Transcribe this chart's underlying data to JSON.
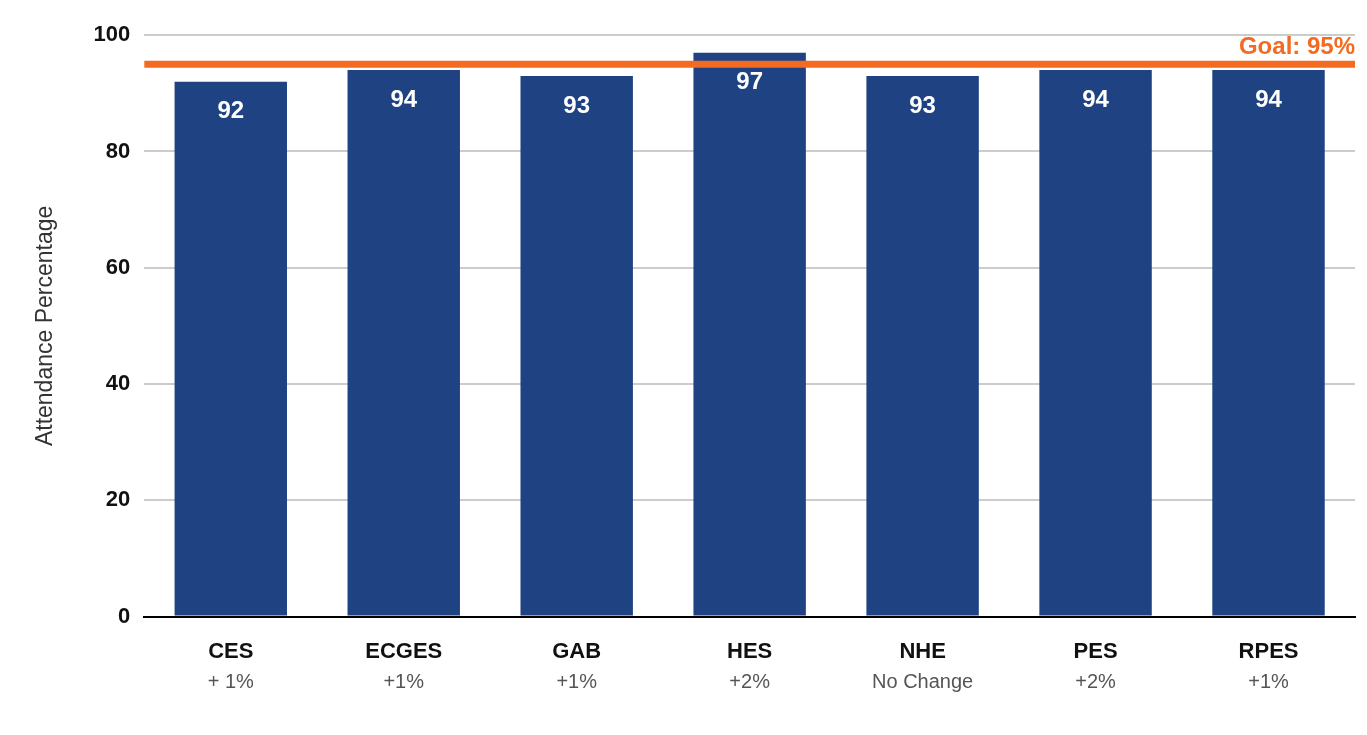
{
  "chart_data": {
    "type": "bar",
    "ylabel": "Attendance Percentage",
    "categories": [
      "CES",
      "ECGES",
      "GAB",
      "HES",
      "NHE",
      "PES",
      "RPES"
    ],
    "values": [
      92,
      94,
      93,
      97,
      93,
      94,
      94
    ],
    "color": "#1f4283",
    "ylim": [
      0,
      100
    ],
    "yticks": [
      0,
      20,
      40,
      60,
      80,
      100
    ],
    "grid": "y",
    "legend": false,
    "data_labels": true,
    "ref_lines": [
      {
        "axis": "y",
        "value": 95,
        "label": "Goal: 95%",
        "color": "#f26b21"
      }
    ],
    "annotations": [
      "+ 1%",
      "+1%",
      "+1%",
      "+2%",
      "No Change",
      "+2%",
      "+1%"
    ]
  }
}
